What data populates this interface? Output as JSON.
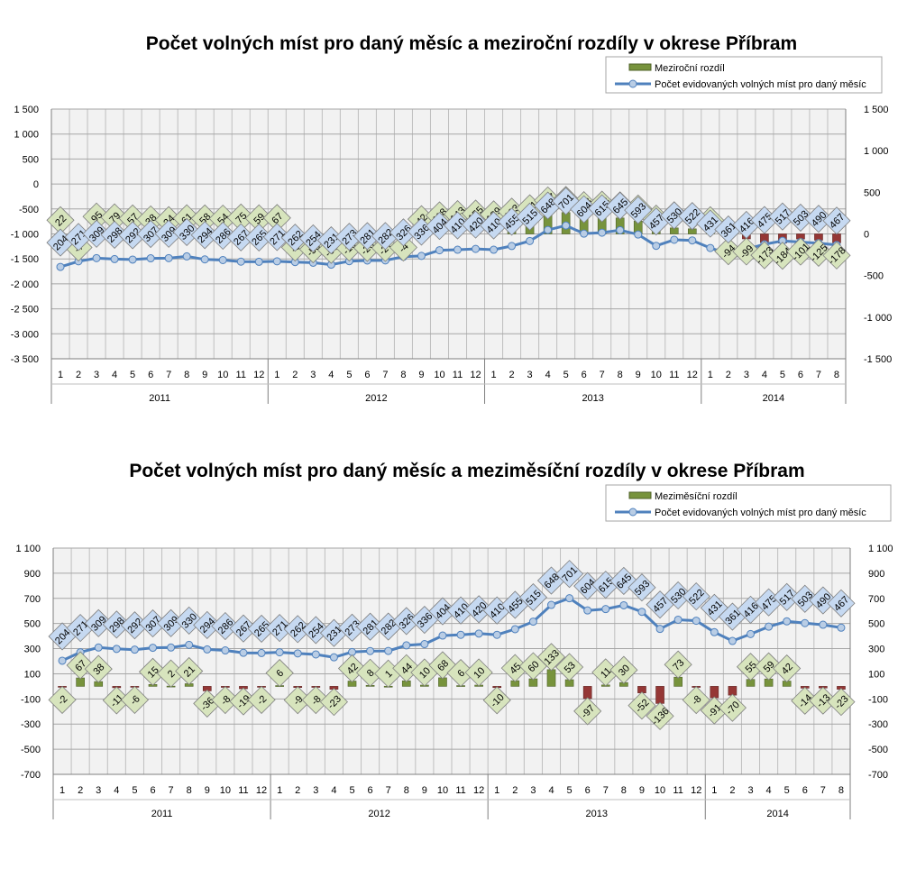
{
  "chart_data": [
    {
      "type": "bar",
      "title": "Počet volných míst pro daný měsíc a meziroční rozdíly v okrese Příbram",
      "x_months": [
        "1",
        "2",
        "3",
        "4",
        "5",
        "6",
        "7",
        "8",
        "9",
        "10",
        "11",
        "12",
        "1",
        "2",
        "3",
        "4",
        "5",
        "6",
        "7",
        "8",
        "9",
        "10",
        "11",
        "12",
        "1",
        "2",
        "3",
        "4",
        "5",
        "6",
        "7",
        "8",
        "9",
        "10",
        "11",
        "12",
        "1",
        "2",
        "3",
        "4",
        "5",
        "6",
        "7",
        "8"
      ],
      "x_years": [
        "2011",
        "2012",
        "2013",
        "2014"
      ],
      "series": [
        {
          "name": "Meziroční rozdíl",
          "kind": "bar",
          "axis": "left",
          "values": [
            22,
            -7,
            95,
            79,
            57,
            38,
            24,
            61,
            58,
            54,
            75,
            59,
            67,
            -9,
            -55,
            -67,
            -19,
            -26,
            -27,
            -4,
            42,
            118,
            143,
            155,
            139,
            193,
            261,
            417,
            428,
            323,
            333,
            319,
            257,
            53,
            120,
            102,
            21,
            -94,
            -99,
            -173,
            -184,
            -101,
            -125,
            -178
          ]
        },
        {
          "name": "Počet evidovaných volných míst pro daný měsíc",
          "kind": "line",
          "axis": "right",
          "values": [
            204,
            271,
            309,
            298,
            292,
            307,
            309,
            330,
            294,
            286,
            267,
            265,
            271,
            262,
            254,
            231,
            273,
            281,
            282,
            326,
            336,
            404,
            410,
            420,
            410,
            455,
            515,
            648,
            701,
            604,
            615,
            645,
            593,
            457,
            530,
            522,
            431,
            361,
            416,
            475,
            517,
            503,
            490,
            467
          ]
        }
      ],
      "left_axis": {
        "min": -3500,
        "max": 1500,
        "ticks": [
          "1 500",
          "1 000",
          "500",
          "0",
          "-500",
          "-1 000",
          "-1 500",
          "-2 000",
          "-2 500",
          "-3 000",
          "-3 500"
        ]
      },
      "right_axis": {
        "min": -1500,
        "max": 1500,
        "ticks": [
          "1 500",
          "1 000",
          "500",
          "0",
          "-500",
          "-1 000",
          "-1 500"
        ]
      },
      "bar_offset_left": -1000,
      "line_offset_right": -600,
      "colors": {
        "positive_bar": "#77933c",
        "negative_bar": "#953735",
        "line": "#4f81bd",
        "marker_fill": "#b9cde5",
        "label_pos": "#d7e4bd",
        "label_line": "#c6d9f1"
      },
      "legend_placement": "top-right",
      "grid": true
    },
    {
      "type": "bar",
      "title": "Počet volných míst pro daný měsíc a meziměsíční rozdíly v okrese Příbram",
      "x_months": [
        "1",
        "2",
        "3",
        "4",
        "5",
        "6",
        "7",
        "8",
        "9",
        "10",
        "11",
        "12",
        "1",
        "2",
        "3",
        "4",
        "5",
        "6",
        "7",
        "8",
        "9",
        "10",
        "11",
        "12",
        "1",
        "2",
        "3",
        "4",
        "5",
        "6",
        "7",
        "8",
        "9",
        "10",
        "11",
        "12",
        "1",
        "2",
        "3",
        "4",
        "5",
        "6",
        "7",
        "8"
      ],
      "x_years": [
        "2011",
        "2012",
        "2013",
        "2014"
      ],
      "series": [
        {
          "name": "Meziměsíční rozdíl",
          "kind": "bar",
          "axis": "left",
          "values": [
            -2,
            67,
            38,
            -11,
            -6,
            15,
            2,
            21,
            -36,
            -8,
            -19,
            -2,
            6,
            -9,
            -8,
            -23,
            42,
            8,
            1,
            44,
            10,
            68,
            6,
            10,
            -10,
            45,
            60,
            133,
            53,
            -97,
            11,
            30,
            -52,
            -136,
            73,
            -8,
            -91,
            -70,
            55,
            59,
            42,
            -14,
            -13,
            -23
          ]
        },
        {
          "name": "Počet evidovaných volných míst pro daný měsíc",
          "kind": "line",
          "axis": "left",
          "values": [
            204,
            271,
            309,
            298,
            292,
            307,
            309,
            330,
            294,
            286,
            267,
            265,
            271,
            262,
            254,
            231,
            273,
            281,
            282,
            326,
            336,
            404,
            410,
            420,
            410,
            455,
            515,
            648,
            701,
            604,
            615,
            645,
            593,
            457,
            530,
            522,
            431,
            361,
            416,
            475,
            517,
            503,
            490,
            467
          ]
        }
      ],
      "left_axis": {
        "min": -700,
        "max": 1100,
        "ticks": [
          "1 100",
          "900",
          "700",
          "500",
          "300",
          "100",
          "-100",
          "-300",
          "-500",
          "-700"
        ]
      },
      "right_axis": {
        "min": -700,
        "max": 1100,
        "ticks": [
          "1 100",
          "900",
          "700",
          "500",
          "300",
          "100",
          "-100",
          "-300",
          "-500",
          "-700"
        ]
      },
      "bar_offset_left": 0,
      "line_offset_left": 0,
      "colors": {
        "positive_bar": "#77933c",
        "negative_bar": "#953735",
        "line": "#4f81bd",
        "marker_fill": "#b9cde5",
        "label_pos": "#d7e4bd",
        "label_line": "#c6d9f1"
      },
      "legend_placement": "top-right",
      "grid": true
    }
  ]
}
